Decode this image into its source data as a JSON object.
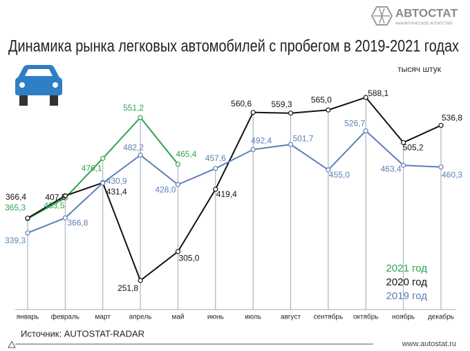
{
  "chart_data": {
    "type": "line",
    "title": "Динамика рынка легковых автомобилей с пробегом в 2019-2021 годах",
    "units": "тысяч штук",
    "source": "Источник: AUTOSTAT-RADAR",
    "brand": "АВТОСТАТ",
    "brand_subtitle": "АНАЛИТИЧЕСКОЕ АГЕНТСТВО",
    "website": "www.autostat.ru",
    "categories": [
      "январь",
      "февраль",
      "март",
      "апрель",
      "май",
      "июнь",
      "июль",
      "август",
      "сентябрь",
      "октябрь",
      "ноябрь",
      "декабрь"
    ],
    "series": [
      {
        "name": "2021 год",
        "color": "#2ea44f",
        "values": [
          365.3,
          403.5,
          476.1,
          551.2,
          465.4,
          null,
          null,
          null,
          null,
          null,
          null,
          null
        ],
        "value_labels": [
          "365,3",
          "403,5",
          "476,1",
          "551,2",
          "465,4",
          null,
          null,
          null,
          null,
          null,
          null,
          null
        ]
      },
      {
        "name": "2020 год",
        "color": "#111111",
        "values": [
          366.4,
          407.5,
          431.4,
          251.8,
          305.0,
          419.4,
          560.6,
          559.3,
          565.0,
          588.1,
          505.2,
          536.8
        ],
        "value_labels": [
          "366,4",
          "407,5",
          "431,4",
          "251,8",
          "305,0",
          "419,4",
          "560,6",
          "559,3",
          "565,0",
          "588,1",
          "505,2",
          "536,8"
        ]
      },
      {
        "name": "2019 год",
        "color": "#5b7fb6",
        "values": [
          339.3,
          366.8,
          430.9,
          482.2,
          428.0,
          457.6,
          492.4,
          501.7,
          455.0,
          526.7,
          463.4,
          460.3
        ],
        "value_labels": [
          "339,3",
          "366,8",
          "430,9",
          "482,2",
          "428,0",
          "457,6",
          "492,4",
          "501,7",
          "455,0",
          "526,7",
          "463,4",
          "460,3"
        ]
      }
    ]
  }
}
